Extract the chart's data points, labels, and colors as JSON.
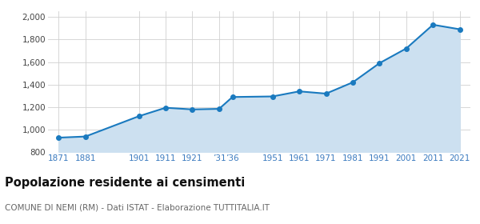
{
  "years": [
    1871,
    1881,
    1901,
    1911,
    1921,
    1931,
    1936,
    1951,
    1961,
    1971,
    1981,
    1991,
    2001,
    2011,
    2021
  ],
  "population": [
    930,
    940,
    1120,
    1195,
    1180,
    1185,
    1290,
    1295,
    1340,
    1320,
    1420,
    1590,
    1720,
    1930,
    1890
  ],
  "x_labels": [
    "1871",
    "1881",
    "1901",
    "1911",
    "1921",
    "’31",
    "’36",
    "1951",
    "1961",
    "1971",
    "1981",
    "1991",
    "2001",
    "2011",
    "2021"
  ],
  "line_color": "#1a7abf",
  "fill_color": "#cce0f0",
  "marker_color": "#1a7abf",
  "bg_color": "#ffffff",
  "grid_color": "#d0d0d0",
  "ylim": [
    800,
    2050
  ],
  "yticks": [
    800,
    1000,
    1200,
    1400,
    1600,
    1800,
    2000
  ],
  "title": "Popolazione residente ai censimenti",
  "subtitle": "COMUNE DI NEMI (RM) - Dati ISTAT - Elaborazione TUTTITALIA.IT",
  "title_fontsize": 10.5,
  "subtitle_fontsize": 7.5,
  "tick_fontsize": 7.5,
  "label_color": "#3a7abf"
}
